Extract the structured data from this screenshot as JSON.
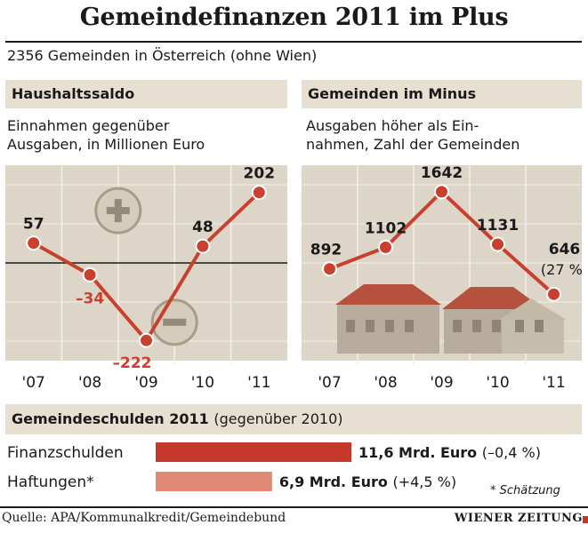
{
  "title": "Gemeindefinanzen 2011 im Plus",
  "subtitle": "2356 Gemeinden in Österreich (ohne Wien)",
  "colors": {
    "line": "#c9412e",
    "band": "#e7e0d2",
    "plot_bg": "#ddd6c8",
    "plot_grid": "#f3efe7",
    "house": "#b8ad9c",
    "roof": "#b5513d",
    "bar_primary": "#c4392a",
    "bar_secondary": "#de8a74"
  },
  "chart_data": [
    {
      "type": "line",
      "title": "Haushaltssaldo",
      "description_lines": [
        "Einnahmen gegenüber",
        "Ausgaben, in Millionen Euro"
      ],
      "categories": [
        "'07",
        "'08",
        "'09",
        "'10",
        "'11"
      ],
      "series": [
        {
          "values": [
            57,
            -34,
            -222,
            48,
            202
          ]
        }
      ],
      "data_labels": [
        "57",
        "–34",
        "–222",
        "48",
        "202"
      ],
      "ylim": [
        -280,
        280
      ],
      "zero_line": true,
      "grid": true,
      "icons": {
        "plus": "plus-circle-icon",
        "minus": "minus-circle-icon"
      }
    },
    {
      "type": "line",
      "title": "Gemeinden im Minus",
      "description_lines": [
        "Ausgaben höher als Ein-",
        "nahmen, Zahl der Gemeinden"
      ],
      "categories": [
        "'07",
        "'08",
        "'09",
        "'10",
        "'11"
      ],
      "series": [
        {
          "values": [
            892,
            1102,
            1642,
            1131,
            646
          ]
        }
      ],
      "data_labels": [
        "892",
        "1102",
        "1642",
        "1131",
        "646"
      ],
      "annotation": "(27 %)",
      "ylim": [
        0,
        1900
      ],
      "grid": true,
      "icons": {
        "houses": "houses-icon"
      }
    },
    {
      "type": "bar",
      "orientation": "horizontal",
      "title": "Gemeindeschulden 2011",
      "title_suffix": "(gegenüber 2010)",
      "categories": [
        "Finanzschulden",
        "Haftungen*"
      ],
      "values": [
        11.6,
        6.9
      ],
      "value_labels": [
        "11,6 Mrd. Euro",
        "6,9 Mrd. Euro"
      ],
      "change_labels": [
        "(–0,4 %)",
        "(+4,5 %)"
      ],
      "footnote": "* Schätzung",
      "xlim": [
        0,
        11.6
      ]
    }
  ],
  "footer": {
    "source": "Quelle: APA/Kommunalkredit/Gemeindebund",
    "logo": "WIENER ZEITUNG"
  }
}
